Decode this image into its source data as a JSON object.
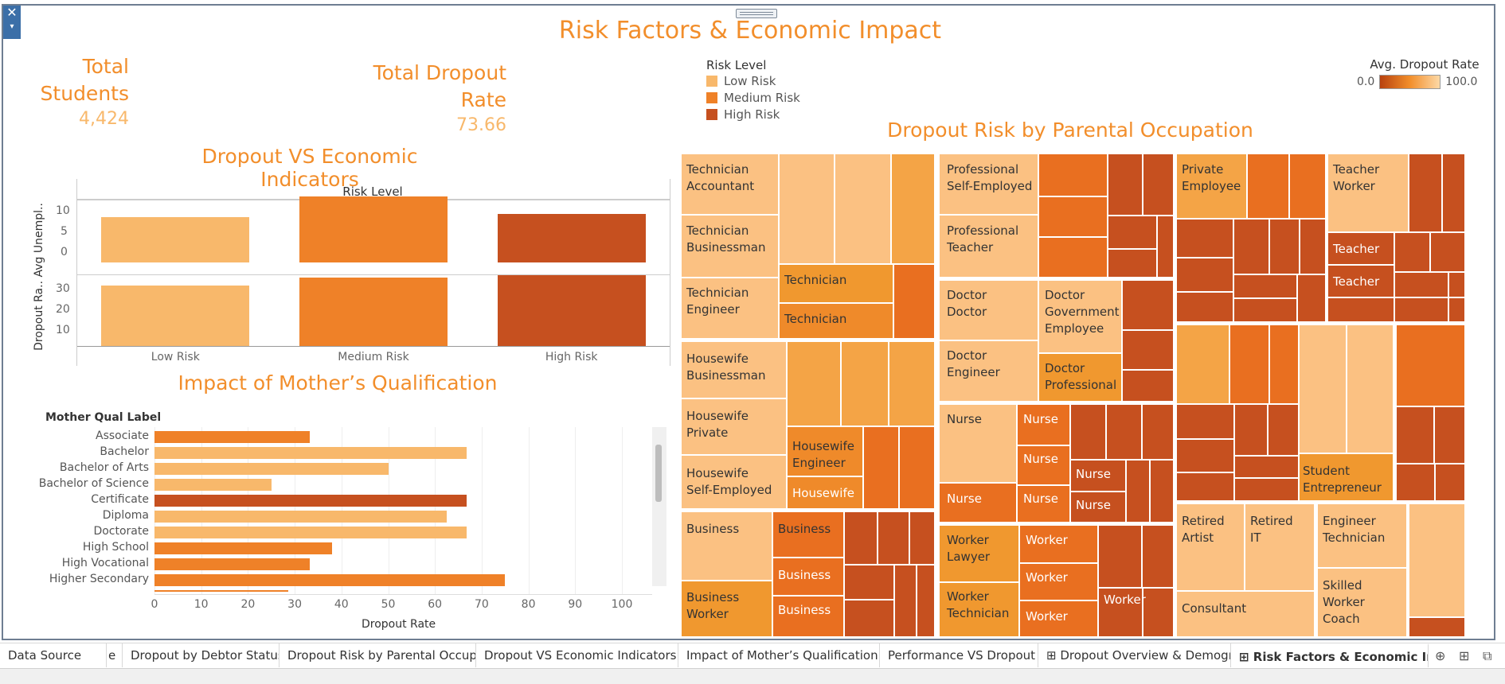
{
  "dashboard": {
    "title": "Risk Factors & Economic Impact",
    "kpis": {
      "total_students_label": "Total Students",
      "total_students_value": "4,424",
      "dropout_rate_label": "Total Dropout Rate",
      "dropout_rate_value": "73.66"
    }
  },
  "colors": {
    "low": "#f8b86b",
    "medium": "#ef8128",
    "high": "#c6501f",
    "title": "#f28e2b"
  },
  "icons": [
    "close-icon",
    "chevron-down-icon",
    "drag-handle-icon",
    "new-worksheet-icon",
    "new-dashboard-icon",
    "new-story-icon"
  ],
  "risk_legend": {
    "title": "Risk Level",
    "items": [
      "Low Risk",
      "Medium Risk",
      "High Risk"
    ]
  },
  "avg_legend": {
    "title": "Avg. Dropout Rate",
    "min": "0.0",
    "max": "100.0"
  },
  "econ_chart": {
    "title": "Dropout VS Economic Indicators",
    "header": "Risk Level",
    "ylabel": "Dropout Ra.. Avg Unempl..",
    "top_ticks": [
      "10",
      "5",
      "0"
    ],
    "bottom_ticks": [
      "30",
      "20",
      "10"
    ]
  },
  "mother_chart": {
    "title": "Impact of Mother’s Qualification",
    "row_header": "Mother Qual Label",
    "xlabel": "Dropout Rate",
    "ticks": [
      "0",
      "10",
      "20",
      "30",
      "40",
      "50",
      "60",
      "70",
      "80",
      "90",
      "100"
    ]
  },
  "treemap": {
    "title": "Dropout Risk by Parental Occupation",
    "labels": {
      "tech_acc": "Technician\nAccountant",
      "tech_bus": "Technician\nBusinessman",
      "tech_eng": "Technician\nEngineer",
      "tech1": "Technician",
      "tech2": "Technician",
      "hw_bus": "Housewife\nBusinessman",
      "hw_priv": "Housewife\nPrivate",
      "hw_self": "Housewife\nSelf-Employed",
      "hw_eng": "Housewife\nEngineer",
      "hw": "Housewife",
      "bus1": "Business",
      "bus2": "Business",
      "bus3": "Business",
      "bus4": "Business",
      "bus_work": "Business\nWorker",
      "prof_self": "Professional\nSelf-Employed",
      "prof_teach": "Professional\nTeacher",
      "doc_doc": "Doctor\nDoctor",
      "doc_eng": "Doctor\nEngineer",
      "doc_gov": "Doctor\nGovernment\nEmployee",
      "doc_prof": "Doctor\nProfessional",
      "nurse1": "Nurse",
      "nurse2": "Nurse",
      "nurse3": "Nurse",
      "nurse4": "Nurse",
      "nurse5": "Nurse",
      "nurse6": "Nurse",
      "nurse7": "Nurse",
      "work_law": "Worker\nLawyer",
      "work_tech": "Worker\nTechnician",
      "work1": "Worker",
      "work2": "Worker",
      "work3": "Worker",
      "work4": "Worker",
      "priv_emp": "Private\nEmployee",
      "teach_work": "Teacher\nWorker",
      "teach1": "Teacher",
      "teach2": "Teacher",
      "stud_ent": "Student\nEntrepreneur",
      "ret_art": "Retired\nArtist",
      "ret_it": "Retired\nIT",
      "consult": "Consultant",
      "eng_tech": "Engineer\nTechnician",
      "skilled": "Skilled\nWorker\nCoach"
    }
  },
  "tabs": [
    "Data Source",
    "e",
    "Dropout by Debtor Status",
    "Dropout Risk by Parental Occup...",
    "Dropout VS Economic Indicators",
    "Impact of Mother’s Qualification",
    "Performance VS Dropout",
    "⊞ Dropout Overview & Demogra...",
    "⊞ Risk Factors & Economic Im..."
  ],
  "chart_data": [
    {
      "type": "bar",
      "title": "Dropout VS Economic Indicators",
      "categories": [
        "Low Risk",
        "Medium Risk",
        "High Risk"
      ],
      "series": [
        {
          "name": "Avg Unempl..",
          "values": [
            9,
            13,
            9.5
          ]
        },
        {
          "name": "Dropout Ra..",
          "values": [
            28,
            32,
            33
          ]
        }
      ],
      "ylim_top": [
        0,
        13
      ],
      "ylim_bottom": [
        0,
        33
      ]
    },
    {
      "type": "bar",
      "title": "Impact of Mother’s Qualification",
      "categories": [
        "Associate",
        "Bachelor",
        "Bachelor of Arts",
        "Bachelor of Science",
        "Certificate",
        "Diploma",
        "Doctorate",
        "High School",
        "High Vocational",
        "Higher Secondary"
      ],
      "values": [
        33.3,
        66.7,
        50.0,
        25.0,
        66.7,
        62.5,
        66.7,
        38.0,
        33.3,
        75.0
      ],
      "risk": [
        "medium",
        "low",
        "low",
        "low",
        "high",
        "low",
        "low",
        "medium",
        "medium",
        "medium"
      ],
      "xlabel": "Dropout Rate",
      "xlim": [
        0,
        100
      ]
    }
  ]
}
